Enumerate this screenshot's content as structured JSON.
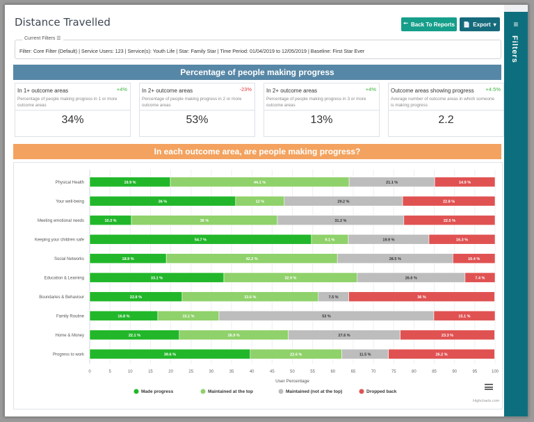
{
  "page": {
    "title": "Distance Travelled",
    "back_button": "Back To Reports",
    "export_button": "Export",
    "sidebar_label": "Filters"
  },
  "filters": {
    "legend": "Current Filters",
    "text": "Filter: Core Filter (Default) | Service Users: 123 | Service(s): Youth Life | Star: Family Star | Time Period: 01/04/2019 to 12/05/2019 | Baseline: First Star Ever"
  },
  "summary": {
    "banner": "Percentage of people making progress",
    "cards": [
      {
        "title": "In 1+ outcome areas",
        "delta": "+4%",
        "delta_color": "#3cb53c",
        "description": "Percentage of people making progress in 1 or more outcome areas",
        "value": "34%"
      },
      {
        "title": "In 2+ outcome areas",
        "delta": "-23%",
        "delta_color": "#e03a3a",
        "description": "Percentage of people making progress in 2 or more outcome areas",
        "value": "53%"
      },
      {
        "title": "In 2+ outcome areas",
        "delta": "+4%",
        "delta_color": "#3cb53c",
        "description": "Percentage of people making progress in 3 or more outcome areas",
        "value": "13%"
      },
      {
        "title": "Outcome areas showing progress",
        "delta": "+4.5%",
        "delta_color": "#3cb53c",
        "description": "Average number of outcome areas in which someone is making progress",
        "value": "2.2"
      }
    ]
  },
  "outcome_section": {
    "banner": "In each outcome area, are people making progress?",
    "credits": "Highcharts.com"
  },
  "chart_data": {
    "type": "bar",
    "orientation": "horizontal",
    "stacking": "percent",
    "title": "",
    "xlabel": "User Percentage",
    "ylabel": "",
    "xlim": [
      0,
      100
    ],
    "xticks": [
      0,
      5,
      10,
      15,
      20,
      25,
      30,
      35,
      40,
      45,
      50,
      55,
      60,
      65,
      70,
      75,
      80,
      85,
      90,
      95,
      100
    ],
    "grid": true,
    "legend_position": "bottom",
    "values_note": "Segment values estimated from bar extents on the axis; printed bar labels are illegible at source resolution.",
    "categories": [
      "Physical Health",
      "Your well-being",
      "Meeting emotional needs",
      "Keeping your children safe",
      "Social Networks",
      "Education & Learning",
      "Boundaries & Behaviour",
      "Family Routine",
      "Home & Money",
      "Progress to work"
    ],
    "series": [
      {
        "name": "Made progress",
        "color": "#22b72a",
        "values": [
          19.9,
          36.0,
          10.3,
          54.7,
          18.9,
          33.1,
          22.8,
          16.8,
          22.1,
          39.6
        ]
      },
      {
        "name": "Maintained at the top",
        "color": "#8fd16a",
        "values": [
          44.1,
          12.0,
          36.0,
          9.1,
          42.2,
          32.9,
          33.6,
          15.1,
          26.9,
          22.6
        ]
      },
      {
        "name": "Maintained (not at the top)",
        "color": "#bdbdbd",
        "values": [
          21.1,
          29.2,
          31.2,
          19.9,
          28.5,
          26.6,
          7.5,
          53.0,
          27.6,
          11.5
        ]
      },
      {
        "name": "Dropped back",
        "color": "#e05252",
        "values": [
          14.9,
          22.8,
          22.5,
          16.3,
          10.4,
          7.4,
          36.0,
          15.1,
          23.3,
          26.2
        ]
      }
    ]
  }
}
